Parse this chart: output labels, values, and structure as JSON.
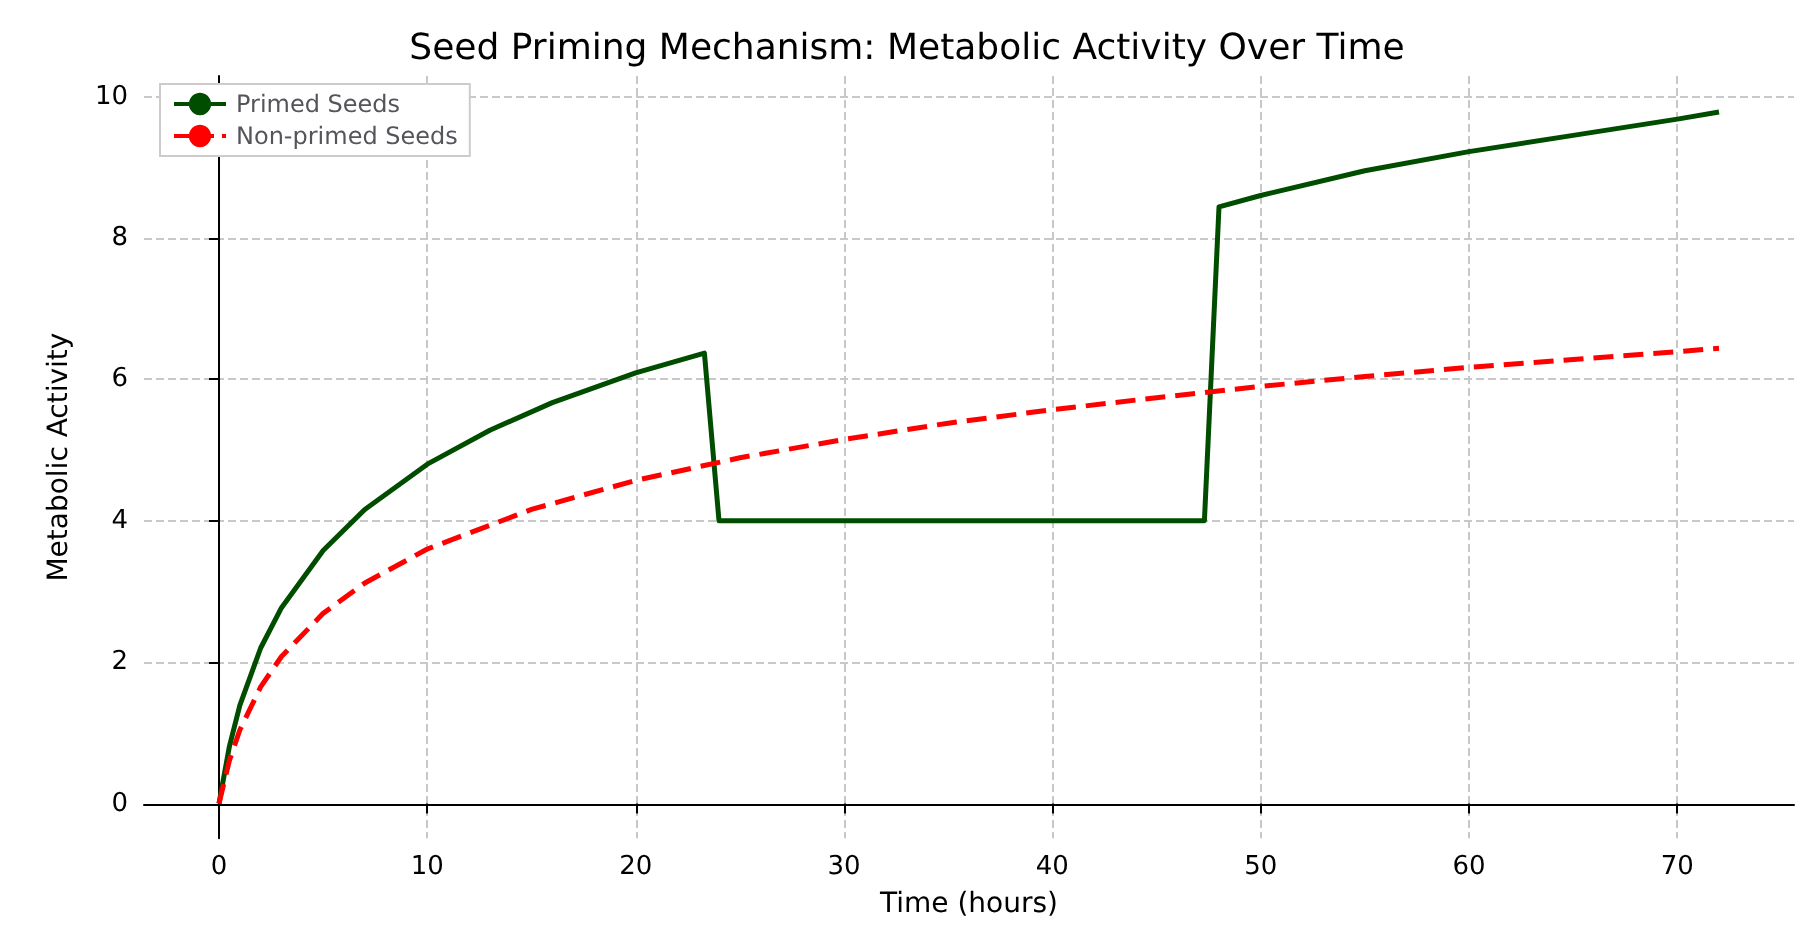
{
  "chart_data": {
    "type": "line",
    "title": "Seed Priming Mechanism: Metabolic Activity Over Time",
    "xlabel": "Time (hours)",
    "ylabel": "Metabolic Activity",
    "xlim": [
      -3.6,
      75.6
    ],
    "xticks": [
      0,
      10,
      20,
      30,
      40,
      50,
      60,
      70
    ],
    "ylim": [
      -0.49,
      10.29
    ],
    "yticks": [
      0,
      2,
      4,
      6,
      8,
      10
    ],
    "grid": true,
    "legend": "top left",
    "marker": "none",
    "series": [
      {
        "name": "Primed Seeds",
        "color": "#004d00",
        "line_style": "solid",
        "x": [
          0,
          0.5,
          1,
          2,
          3,
          5,
          7,
          10,
          13,
          16,
          20,
          23.3,
          24,
          47.3,
          48,
          50,
          55,
          60,
          65,
          70,
          72
        ],
        "values": [
          0,
          0.81,
          1.39,
          2.2,
          2.77,
          3.58,
          4.16,
          4.8,
          5.28,
          5.67,
          6.09,
          6.37,
          4.0,
          4.0,
          8.44,
          8.6,
          8.95,
          9.22,
          9.45,
          9.68,
          9.78
        ]
      },
      {
        "name": "Non-primed Seeds",
        "color": "#ff0000",
        "line_style": "dashed",
        "x": [
          0,
          0.5,
          1,
          2,
          3,
          5,
          7,
          10,
          15,
          20,
          25,
          30,
          35,
          40,
          45,
          50,
          55,
          60,
          65,
          70,
          72
        ],
        "values": [
          0,
          0.61,
          1.04,
          1.65,
          2.08,
          2.69,
          3.12,
          3.6,
          4.16,
          4.57,
          4.89,
          5.15,
          5.38,
          5.57,
          5.74,
          5.9,
          6.04,
          6.17,
          6.28,
          6.39,
          6.44
        ]
      }
    ]
  }
}
